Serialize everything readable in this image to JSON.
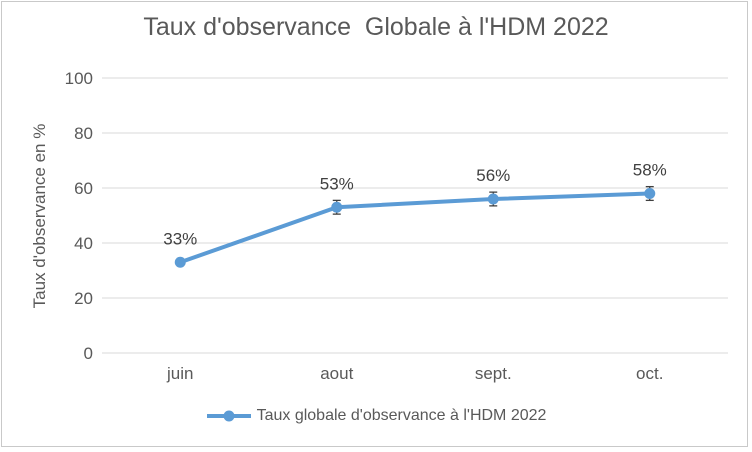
{
  "window": {
    "background": "#FFFFFF",
    "border_color": "#C9C9C9"
  },
  "chart_data": {
    "type": "line",
    "title": "Taux d'observance  Globale à l'HDM 2022",
    "categories": [
      "juin",
      "aout",
      "sept.",
      "oct."
    ],
    "series": [
      {
        "name": "Taux globale d'observance à l'HDM 2022",
        "values": [
          33,
          53,
          56,
          58
        ],
        "data_labels": [
          "33%",
          "53%",
          "56%",
          "58%"
        ],
        "error_bars_pct": [
          0,
          2.5,
          2.5,
          2.5
        ],
        "color": "#5B9BD5",
        "marker": "circle"
      }
    ],
    "xlabel": "",
    "ylabel": "Taux d'observance en %",
    "ylim": [
      0,
      100
    ],
    "yticks": [
      0,
      20,
      40,
      60,
      80,
      100
    ],
    "grid": true,
    "gridline_color": "#D9D9D9",
    "legend_position": "bottom",
    "axis_text_color": "#595959",
    "data_label_color": "#404040",
    "error_bar_color": "#404040"
  }
}
